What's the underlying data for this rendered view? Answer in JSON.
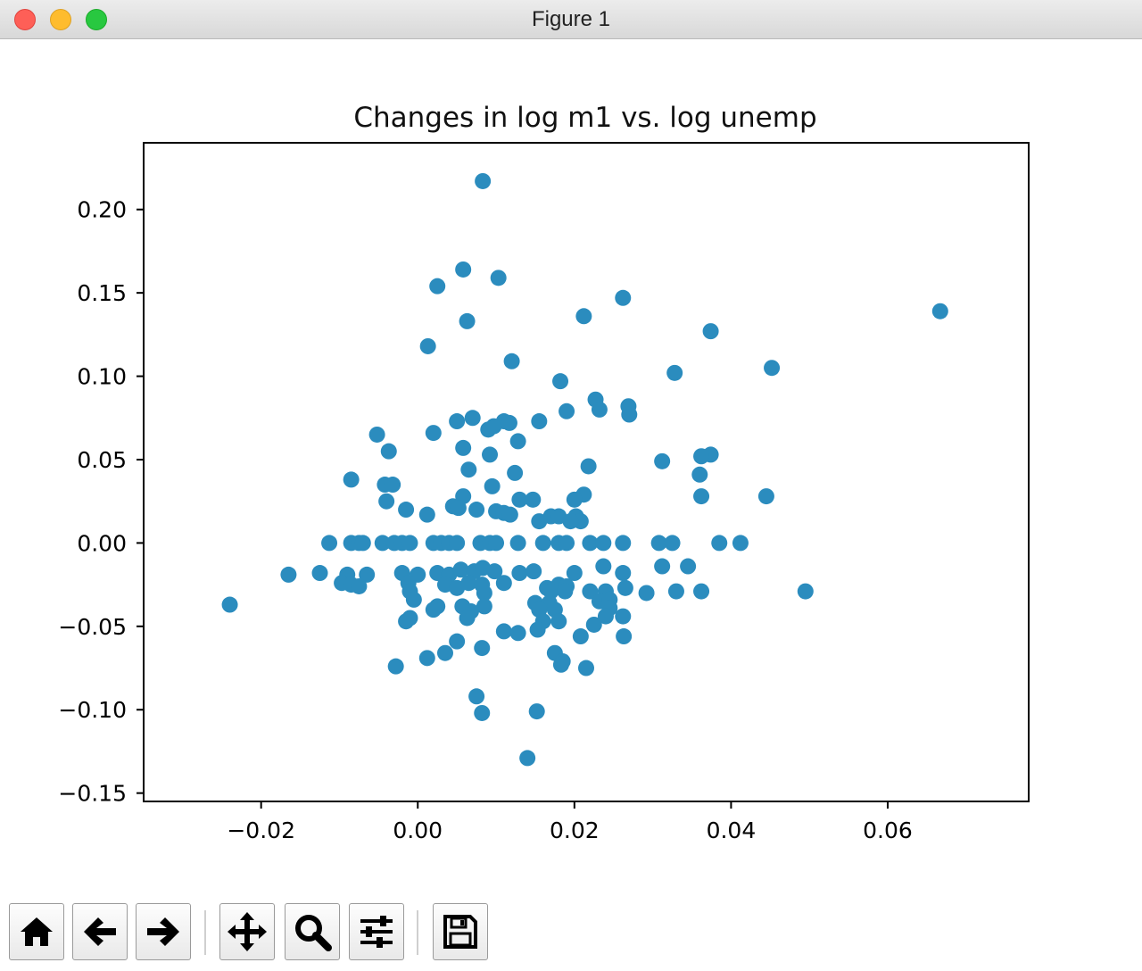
{
  "window": {
    "title": "Figure 1"
  },
  "toolbar": {
    "buttons": [
      {
        "name": "home-button",
        "icon": "home-icon"
      },
      {
        "name": "back-button",
        "icon": "arrow-left-icon"
      },
      {
        "name": "forward-button",
        "icon": "arrow-right-icon"
      },
      {
        "name": "pan-button",
        "icon": "move-icon"
      },
      {
        "name": "zoom-button",
        "icon": "magnifier-icon"
      },
      {
        "name": "configure-subplots-button",
        "icon": "sliders-icon"
      },
      {
        "name": "save-button",
        "icon": "floppy-disk-icon"
      }
    ]
  },
  "chart_data": {
    "type": "scatter",
    "title": "Changes in log m1 vs. log unemp",
    "xlabel": "",
    "ylabel": "",
    "xlim": [
      -0.035,
      0.078
    ],
    "ylim": [
      -0.155,
      0.24
    ],
    "xticks": [
      -0.02,
      0.0,
      0.02,
      0.04,
      0.06
    ],
    "xtick_labels": [
      "−0.02",
      "0.00",
      "0.02",
      "0.04",
      "0.06"
    ],
    "yticks": [
      0.2,
      0.15,
      0.1,
      0.05,
      0.0,
      -0.05,
      -0.1,
      -0.15
    ],
    "ytick_labels": [
      "0.20",
      "0.15",
      "0.10",
      "0.05",
      "0.00",
      "−0.05",
      "−0.10",
      "−0.15"
    ],
    "grid": false,
    "marker_color": "#2b8cbe",
    "points": [
      [
        0.0083,
        0.217
      ],
      [
        0.0058,
        0.164
      ],
      [
        0.0103,
        0.159
      ],
      [
        0.0025,
        0.154
      ],
      [
        0.0262,
        0.147
      ],
      [
        0.0667,
        0.139
      ],
      [
        0.0212,
        0.136
      ],
      [
        0.0063,
        0.133
      ],
      [
        0.0374,
        0.127
      ],
      [
        0.0013,
        0.118
      ],
      [
        0.012,
        0.109
      ],
      [
        0.0452,
        0.105
      ],
      [
        0.0328,
        0.102
      ],
      [
        0.0182,
        0.097
      ],
      [
        0.0227,
        0.086
      ],
      [
        0.0269,
        0.082
      ],
      [
        0.0232,
        0.08
      ],
      [
        0.019,
        0.079
      ],
      [
        0.027,
        0.077
      ],
      [
        0.007,
        0.075
      ],
      [
        0.005,
        0.073
      ],
      [
        0.011,
        0.073
      ],
      [
        0.0155,
        0.073
      ],
      [
        0.0117,
        0.072
      ],
      [
        0.009,
        0.068
      ],
      [
        0.0097,
        0.07
      ],
      [
        0.002,
        0.066
      ],
      [
        -0.0052,
        0.065
      ],
      [
        0.0128,
        0.061
      ],
      [
        0.0058,
        0.057
      ],
      [
        -0.0037,
        0.055
      ],
      [
        0.0092,
        0.053
      ],
      [
        0.0374,
        0.053
      ],
      [
        0.0362,
        0.052
      ],
      [
        0.0312,
        0.049
      ],
      [
        0.0218,
        0.046
      ],
      [
        0.0065,
        0.044
      ],
      [
        0.0124,
        0.042
      ],
      [
        0.036,
        0.041
      ],
      [
        -0.0085,
        0.038
      ],
      [
        -0.0042,
        0.035
      ],
      [
        -0.0032,
        0.035
      ],
      [
        0.0095,
        0.034
      ],
      [
        0.0058,
        0.028
      ],
      [
        0.0212,
        0.029
      ],
      [
        0.0362,
        0.028
      ],
      [
        0.0445,
        0.028
      ],
      [
        0.013,
        0.026
      ],
      [
        0.0147,
        0.026
      ],
      [
        0.02,
        0.026
      ],
      [
        -0.004,
        0.025
      ],
      [
        0.0045,
        0.022
      ],
      [
        0.0052,
        0.021
      ],
      [
        -0.0015,
        0.02
      ],
      [
        0.0075,
        0.02
      ],
      [
        0.01,
        0.019
      ],
      [
        0.011,
        0.018
      ],
      [
        0.0012,
        0.017
      ],
      [
        0.0118,
        0.017
      ],
      [
        0.017,
        0.016
      ],
      [
        0.018,
        0.016
      ],
      [
        0.0202,
        0.016
      ],
      [
        0.0208,
        0.013
      ],
      [
        0.0155,
        0.013
      ],
      [
        0.0195,
        0.013
      ],
      [
        -0.0113,
        0.0
      ],
      [
        -0.0085,
        0.0
      ],
      [
        -0.0075,
        0.0
      ],
      [
        -0.007,
        0.0
      ],
      [
        -0.0045,
        0.0
      ],
      [
        -0.003,
        0.0
      ],
      [
        -0.002,
        0.0
      ],
      [
        -0.001,
        0.0
      ],
      [
        0.002,
        0.0
      ],
      [
        0.003,
        0.0
      ],
      [
        0.004,
        0.0
      ],
      [
        0.005,
        0.0
      ],
      [
        0.008,
        0.0
      ],
      [
        0.0092,
        0.0
      ],
      [
        0.01,
        0.0
      ],
      [
        0.0128,
        0.0
      ],
      [
        0.016,
        0.0
      ],
      [
        0.018,
        0.0
      ],
      [
        0.019,
        0.0
      ],
      [
        0.022,
        0.0
      ],
      [
        0.0237,
        0.0
      ],
      [
        0.0262,
        0.0
      ],
      [
        0.0308,
        0.0
      ],
      [
        0.0325,
        0.0
      ],
      [
        0.0385,
        0.0
      ],
      [
        0.0412,
        0.0
      ],
      [
        -0.0165,
        -0.019
      ],
      [
        -0.0125,
        -0.018
      ],
      [
        -0.009,
        -0.019
      ],
      [
        -0.0065,
        -0.019
      ],
      [
        -0.002,
        -0.018
      ],
      [
        0.0,
        -0.019
      ],
      [
        0.0025,
        -0.018
      ],
      [
        0.004,
        -0.019
      ],
      [
        0.0055,
        -0.016
      ],
      [
        0.0072,
        -0.017
      ],
      [
        0.0083,
        -0.015
      ],
      [
        0.0098,
        -0.017
      ],
      [
        0.013,
        -0.018
      ],
      [
        0.0148,
        -0.017
      ],
      [
        0.02,
        -0.018
      ],
      [
        0.0237,
        -0.014
      ],
      [
        0.0262,
        -0.018
      ],
      [
        0.0312,
        -0.014
      ],
      [
        0.0345,
        -0.014
      ],
      [
        -0.0097,
        -0.024
      ],
      [
        -0.0085,
        -0.025
      ],
      [
        -0.0075,
        -0.026
      ],
      [
        -0.0012,
        -0.024
      ],
      [
        0.0035,
        -0.025
      ],
      [
        0.005,
        -0.027
      ],
      [
        0.0065,
        -0.024
      ],
      [
        0.0082,
        -0.025
      ],
      [
        0.011,
        -0.024
      ],
      [
        0.0165,
        -0.027
      ],
      [
        0.018,
        -0.025
      ],
      [
        0.019,
        -0.026
      ],
      [
        -0.001,
        -0.029
      ],
      [
        0.0085,
        -0.03
      ],
      [
        0.017,
        -0.029
      ],
      [
        0.0188,
        -0.029
      ],
      [
        0.022,
        -0.029
      ],
      [
        0.024,
        -0.029
      ],
      [
        0.0265,
        -0.027
      ],
      [
        0.0292,
        -0.03
      ],
      [
        0.033,
        -0.029
      ],
      [
        0.0362,
        -0.029
      ],
      [
        0.0495,
        -0.029
      ],
      [
        -0.0005,
        -0.034
      ],
      [
        0.015,
        -0.036
      ],
      [
        0.0168,
        -0.036
      ],
      [
        0.0232,
        -0.035
      ],
      [
        0.0245,
        -0.034
      ],
      [
        -0.024,
        -0.037
      ],
      [
        0.0025,
        -0.038
      ],
      [
        0.0057,
        -0.038
      ],
      [
        0.0085,
        -0.038
      ],
      [
        0.0155,
        -0.04
      ],
      [
        0.0175,
        -0.04
      ],
      [
        0.0245,
        -0.039
      ],
      [
        0.002,
        -0.04
      ],
      [
        0.0068,
        -0.041
      ],
      [
        0.024,
        -0.044
      ],
      [
        0.0262,
        -0.044
      ],
      [
        -0.001,
        -0.045
      ],
      [
        -0.0015,
        -0.047
      ],
      [
        0.0063,
        -0.045
      ],
      [
        0.016,
        -0.047
      ],
      [
        0.018,
        -0.047
      ],
      [
        0.0225,
        -0.049
      ],
      [
        0.011,
        -0.053
      ],
      [
        0.0128,
        -0.054
      ],
      [
        0.0153,
        -0.052
      ],
      [
        0.0208,
        -0.056
      ],
      [
        0.0263,
        -0.056
      ],
      [
        0.005,
        -0.059
      ],
      [
        0.0082,
        -0.063
      ],
      [
        0.0035,
        -0.066
      ],
      [
        0.0175,
        -0.066
      ],
      [
        0.0012,
        -0.069
      ],
      [
        0.0185,
        -0.071
      ],
      [
        0.0183,
        -0.073
      ],
      [
        -0.0028,
        -0.074
      ],
      [
        0.0215,
        -0.075
      ],
      [
        0.0075,
        -0.092
      ],
      [
        0.0082,
        -0.102
      ],
      [
        0.0152,
        -0.101
      ],
      [
        0.014,
        -0.129
      ]
    ]
  }
}
